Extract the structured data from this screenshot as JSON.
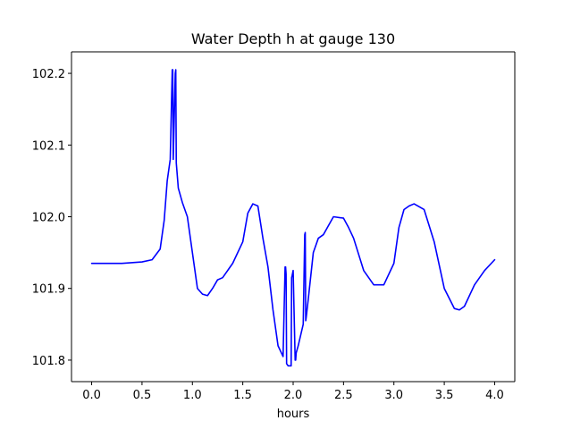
{
  "chart_data": {
    "type": "line",
    "title": "Water Depth h at gauge 130",
    "xlabel": "hours",
    "ylabel": "",
    "xlim": [
      -0.2,
      4.2
    ],
    "ylim": [
      101.77,
      102.23
    ],
    "grid": false,
    "x_ticks": [
      0.0,
      0.5,
      1.0,
      1.5,
      2.0,
      2.5,
      3.0,
      3.5,
      4.0
    ],
    "x_tick_labels": [
      "0.0",
      "0.5",
      "1.0",
      "1.5",
      "2.0",
      "2.5",
      "3.0",
      "3.5",
      "4.0"
    ],
    "y_ticks": [
      101.8,
      101.9,
      102.0,
      102.1,
      102.2
    ],
    "y_tick_labels": [
      "101.8",
      "101.9",
      "102.0",
      "102.1",
      "102.2"
    ],
    "series": [
      {
        "color": "#0000ff",
        "x": [
          0.0,
          0.3,
          0.5,
          0.6,
          0.68,
          0.72,
          0.75,
          0.78,
          0.8,
          0.805,
          0.81,
          0.83,
          0.835,
          0.84,
          0.86,
          0.9,
          0.95,
          1.0,
          1.05,
          1.1,
          1.15,
          1.2,
          1.25,
          1.3,
          1.4,
          1.5,
          1.55,
          1.6,
          1.65,
          1.7,
          1.75,
          1.8,
          1.85,
          1.9,
          1.92,
          1.925,
          1.93,
          1.935,
          1.95,
          1.98,
          1.985,
          1.99,
          2.0,
          2.02,
          2.025,
          2.03,
          2.05,
          2.1,
          2.115,
          2.12,
          2.125,
          2.13,
          2.15,
          2.2,
          2.25,
          2.3,
          2.4,
          2.5,
          2.55,
          2.6,
          2.7,
          2.8,
          2.9,
          3.0,
          3.05,
          3.1,
          3.15,
          3.2,
          3.3,
          3.4,
          3.5,
          3.6,
          3.65,
          3.7,
          3.8,
          3.9,
          4.0
        ],
        "y": [
          101.935,
          101.935,
          101.937,
          101.94,
          101.955,
          101.995,
          102.05,
          102.08,
          102.205,
          102.205,
          102.08,
          102.2,
          102.205,
          102.075,
          102.04,
          102.02,
          102.0,
          101.95,
          101.9,
          101.892,
          101.89,
          101.9,
          101.912,
          101.915,
          101.935,
          101.965,
          102.005,
          102.018,
          102.015,
          101.97,
          101.93,
          101.87,
          101.82,
          101.805,
          101.93,
          101.93,
          101.92,
          101.795,
          101.792,
          101.792,
          101.915,
          101.918,
          101.925,
          101.8,
          101.8,
          101.81,
          101.82,
          101.85,
          101.975,
          101.978,
          101.855,
          101.86,
          101.885,
          101.95,
          101.97,
          101.975,
          102.0,
          101.998,
          101.985,
          101.97,
          101.925,
          101.905,
          101.905,
          101.935,
          101.985,
          102.01,
          102.015,
          102.018,
          102.01,
          101.965,
          101.9,
          101.872,
          101.87,
          101.875,
          101.905,
          101.925,
          101.94
        ]
      }
    ]
  }
}
